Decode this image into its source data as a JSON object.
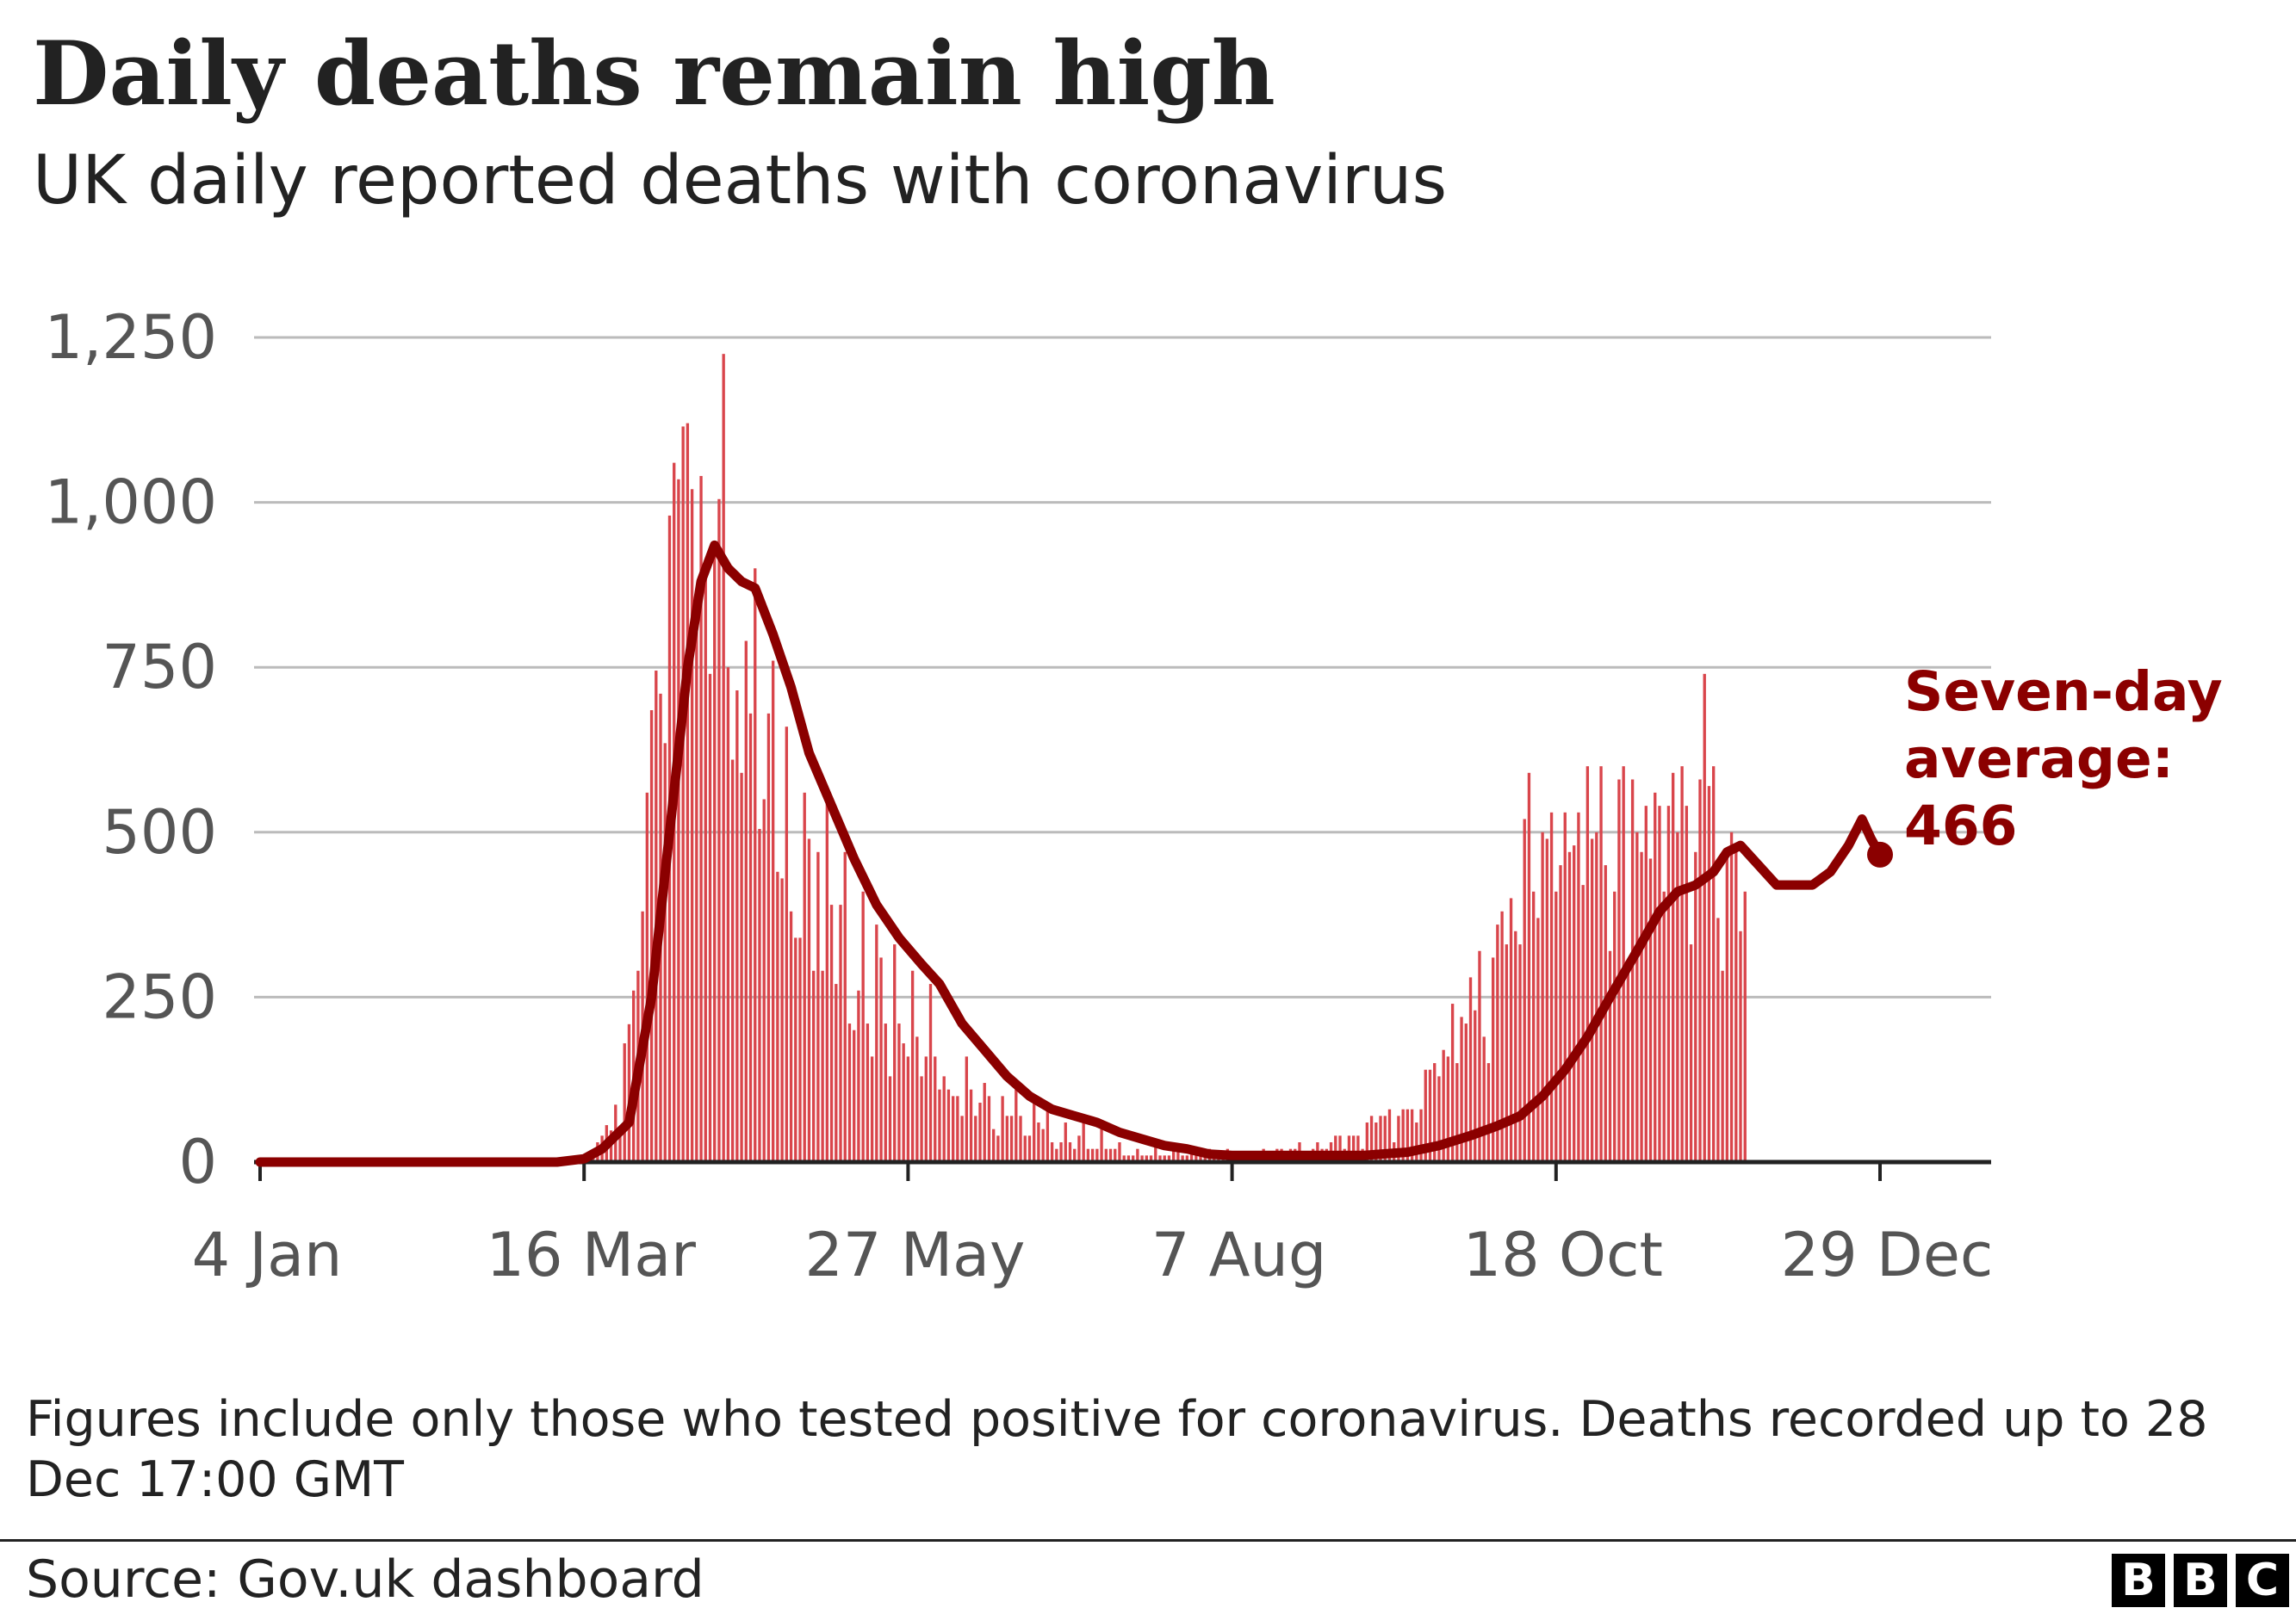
{
  "header": {
    "title": "Daily deaths remain high",
    "subtitle": "UK daily reported deaths with coronavirus"
  },
  "chart_data": {
    "type": "bar",
    "title": "Daily deaths remain high",
    "subtitle": "UK daily reported deaths with coronavirus",
    "xlabel": "",
    "ylabel": "",
    "ylim": [
      0,
      1250
    ],
    "yticks": [
      0,
      250,
      500,
      750,
      1000,
      1250
    ],
    "ytick_labels": [
      "0",
      "250",
      "500",
      "750",
      "1,000",
      "1,250"
    ],
    "xticks": [
      "2020-01-04",
      "2020-03-16",
      "2020-05-27",
      "2020-08-07",
      "2020-10-18",
      "2020-12-29"
    ],
    "xtick_labels": [
      "4 Jan",
      "16 Mar",
      "27 May",
      "7 Aug",
      "18 Oct",
      "29 Dec"
    ],
    "x_start": "2020-01-04",
    "x_end": "2020-12-29",
    "grid": true,
    "bar_color": "#d9454b",
    "line_color": "#8b0000",
    "series": [
      {
        "values_note": "",
        "daily_dates_start": "2020-03-08",
        "values": [
          0,
          2,
          1,
          0,
          1,
          5,
          1,
          1,
          2,
          14,
          18,
          30,
          40,
          56,
          48,
          87,
          41,
          180,
          209,
          260,
          290,
          380,
          560,
          685,
          745,
          710,
          635,
          980,
          1060,
          1035,
          1115,
          1120,
          1020,
          845,
          1040,
          890,
          740,
          930,
          1005,
          1225,
          750,
          610,
          715,
          590,
          790,
          680,
          900,
          505,
          550,
          680,
          760,
          440,
          430,
          660,
          380,
          340,
          340,
          560,
          490,
          290,
          470,
          290,
          560,
          390,
          270,
          390,
          470,
          210,
          200,
          260,
          410,
          210,
          160,
          360,
          310,
          210,
          130,
          330,
          210,
          180,
          160,
          290,
          190,
          130,
          160,
          270,
          160,
          110,
          130,
          110,
          100,
          100,
          70,
          160,
          110,
          70,
          90,
          120,
          100,
          50,
          40,
          100,
          70,
          70,
          110,
          70,
          40,
          40,
          100,
          60,
          50,
          80,
          30,
          20,
          30,
          60,
          30,
          20,
          40,
          60,
          20,
          20,
          20,
          50,
          20,
          20,
          20,
          30,
          10,
          10,
          10,
          20,
          10,
          10,
          10,
          30,
          10,
          10,
          10,
          20,
          20,
          10,
          10,
          20,
          10,
          10,
          10,
          20,
          10,
          10,
          10,
          20,
          10,
          10,
          10,
          15,
          10,
          10,
          10,
          20,
          10,
          10,
          20,
          20,
          10,
          20,
          20,
          30,
          10,
          10,
          20,
          30,
          20,
          20,
          30,
          40,
          40,
          20,
          40,
          40,
          40,
          20,
          60,
          70,
          60,
          70,
          70,
          80,
          30,
          70,
          80,
          80,
          80,
          60,
          80,
          140,
          140,
          150,
          130,
          170,
          160,
          240,
          150,
          220,
          210,
          280,
          230,
          320,
          190,
          150,
          310,
          360,
          380,
          330,
          400,
          350,
          330,
          520,
          590,
          410,
          370,
          500,
          490,
          530,
          410,
          450,
          530,
          470,
          480,
          530,
          420,
          600,
          490,
          500,
          600,
          450,
          320,
          410,
          580,
          600,
          290,
          580,
          500,
          470,
          540,
          460,
          560,
          540,
          410,
          540,
          590,
          500,
          600,
          540,
          330,
          470,
          580,
          740,
          570,
          600,
          370,
          290,
          460,
          500,
          470,
          350,
          410
        ]
      },
      {
        "name": "Seven-day average",
        "type": "line",
        "points": [
          [
            "2020-01-04",
            0
          ],
          [
            "2020-03-10",
            0
          ],
          [
            "2020-03-16",
            5
          ],
          [
            "2020-03-20",
            20
          ],
          [
            "2020-03-26",
            60
          ],
          [
            "2020-03-31",
            250
          ],
          [
            "2020-04-04",
            500
          ],
          [
            "2020-04-08",
            750
          ],
          [
            "2020-04-11",
            880
          ],
          [
            "2020-04-14",
            935
          ],
          [
            "2020-04-17",
            900
          ],
          [
            "2020-04-20",
            880
          ],
          [
            "2020-04-23",
            870
          ],
          [
            "2020-04-27",
            800
          ],
          [
            "2020-05-01",
            720
          ],
          [
            "2020-05-05",
            620
          ],
          [
            "2020-05-10",
            540
          ],
          [
            "2020-05-15",
            460
          ],
          [
            "2020-05-20",
            390
          ],
          [
            "2020-05-25",
            340
          ],
          [
            "2020-05-30",
            300
          ],
          [
            "2020-06-03",
            270
          ],
          [
            "2020-06-08",
            210
          ],
          [
            "2020-06-13",
            170
          ],
          [
            "2020-06-18",
            130
          ],
          [
            "2020-06-23",
            100
          ],
          [
            "2020-06-28",
            80
          ],
          [
            "2020-07-03",
            70
          ],
          [
            "2020-07-08",
            60
          ],
          [
            "2020-07-13",
            45
          ],
          [
            "2020-07-18",
            35
          ],
          [
            "2020-07-23",
            25
          ],
          [
            "2020-07-28",
            20
          ],
          [
            "2020-08-02",
            12
          ],
          [
            "2020-08-07",
            10
          ],
          [
            "2020-08-15",
            10
          ],
          [
            "2020-08-25",
            10
          ],
          [
            "2020-09-05",
            10
          ],
          [
            "2020-09-15",
            15
          ],
          [
            "2020-09-22",
            25
          ],
          [
            "2020-09-29",
            40
          ],
          [
            "2020-10-05",
            55
          ],
          [
            "2020-10-10",
            70
          ],
          [
            "2020-10-15",
            100
          ],
          [
            "2020-10-20",
            140
          ],
          [
            "2020-10-25",
            190
          ],
          [
            "2020-10-30",
            250
          ],
          [
            "2020-11-05",
            320
          ],
          [
            "2020-11-10",
            380
          ],
          [
            "2020-11-14",
            410
          ],
          [
            "2020-11-18",
            420
          ],
          [
            "2020-11-22",
            440
          ],
          [
            "2020-11-25",
            470
          ],
          [
            "2020-11-28",
            480
          ],
          [
            "2020-12-02",
            450
          ],
          [
            "2020-12-06",
            420
          ],
          [
            "2020-12-10",
            420
          ],
          [
            "2020-12-14",
            420
          ],
          [
            "2020-12-18",
            440
          ],
          [
            "2020-12-22",
            480
          ],
          [
            "2020-12-25",
            520
          ],
          [
            "2020-12-27",
            490
          ],
          [
            "2020-12-29",
            466
          ]
        ]
      }
    ],
    "annotation": {
      "lines": [
        "Seven-day",
        "average:",
        "466"
      ],
      "date": "2020-12-29",
      "value": 466
    }
  },
  "footer": {
    "note": "Figures include only those who tested positive for coronavirus. Deaths recorded up to 28 Dec 17:00 GMT",
    "source": "Source: Gov.uk dashboard",
    "logo_letters": [
      "B",
      "B",
      "C"
    ]
  }
}
